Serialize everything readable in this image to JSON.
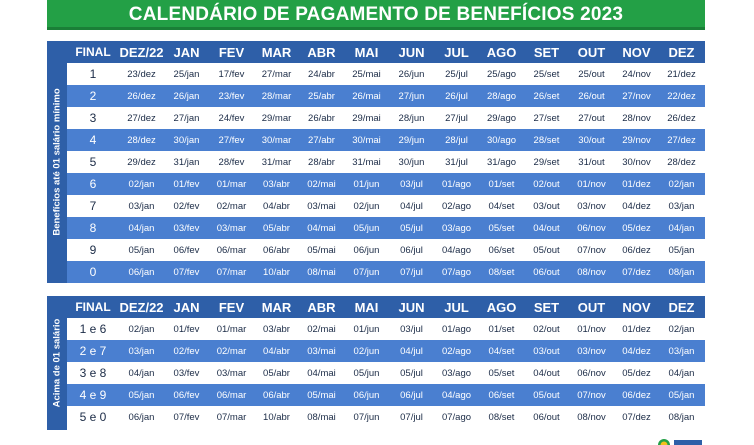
{
  "title": "CALENDÁRIO DE PAGAMENTO DE BENEFÍCIOS 2023",
  "header": [
    "FINAL",
    "DEZ/22",
    "JAN",
    "FEV",
    "MAR",
    "ABR",
    "MAI",
    "JUN",
    "JUL",
    "AGO",
    "SET",
    "OUT",
    "NOV",
    "DEZ"
  ],
  "section1": {
    "side_label": "Benefícios até 01 salário mínimo",
    "rows": [
      [
        "1",
        "23/dez",
        "25/jan",
        "17/fev",
        "27/mar",
        "24/abr",
        "25/mai",
        "26/jun",
        "25/jul",
        "25/ago",
        "25/set",
        "25/out",
        "24/nov",
        "21/dez"
      ],
      [
        "2",
        "26/dez",
        "26/jan",
        "23/fev",
        "28/mar",
        "25/abr",
        "26/mai",
        "27/jun",
        "26/jul",
        "28/ago",
        "26/set",
        "26/out",
        "27/nov",
        "22/dez"
      ],
      [
        "3",
        "27/dez",
        "27/jan",
        "24/fev",
        "29/mar",
        "26/abr",
        "29/mai",
        "28/jun",
        "27/jul",
        "29/ago",
        "27/set",
        "27/out",
        "28/nov",
        "26/dez"
      ],
      [
        "4",
        "28/dez",
        "30/jan",
        "27/fev",
        "30/mar",
        "27/abr",
        "30/mai",
        "29/jun",
        "28/jul",
        "30/ago",
        "28/set",
        "30/out",
        "29/nov",
        "27/dez"
      ],
      [
        "5",
        "29/dez",
        "31/jan",
        "28/fev",
        "31/mar",
        "28/abr",
        "31/mai",
        "30/jun",
        "31/jul",
        "31/ago",
        "29/set",
        "31/out",
        "30/nov",
        "28/dez"
      ],
      [
        "6",
        "02/jan",
        "01/fev",
        "01/mar",
        "03/abr",
        "02/mai",
        "01/jun",
        "03/jul",
        "01/ago",
        "01/set",
        "02/out",
        "01/nov",
        "01/dez",
        "02/jan"
      ],
      [
        "7",
        "03/jan",
        "02/fev",
        "02/mar",
        "04/abr",
        "03/mai",
        "02/jun",
        "04/jul",
        "02/ago",
        "04/set",
        "03/out",
        "03/nov",
        "04/dez",
        "03/jan"
      ],
      [
        "8",
        "04/jan",
        "03/fev",
        "03/mar",
        "05/abr",
        "04/mai",
        "05/jun",
        "05/jul",
        "03/ago",
        "05/set",
        "04/out",
        "06/nov",
        "05/dez",
        "04/jan"
      ],
      [
        "9",
        "05/jan",
        "06/fev",
        "06/mar",
        "06/abr",
        "05/mai",
        "06/jun",
        "06/jul",
        "04/ago",
        "06/set",
        "05/out",
        "07/nov",
        "06/dez",
        "05/jan"
      ],
      [
        "0",
        "06/jan",
        "07/fev",
        "07/mar",
        "10/abr",
        "08/mai",
        "07/jun",
        "07/jul",
        "07/ago",
        "08/set",
        "06/out",
        "08/nov",
        "07/dez",
        "08/jan"
      ]
    ]
  },
  "section2": {
    "side_label": "Acima de 01 salário",
    "rows": [
      [
        "1 e 6",
        "02/jan",
        "01/fev",
        "01/mar",
        "03/abr",
        "02/mai",
        "01/jun",
        "03/jul",
        "01/ago",
        "01/set",
        "02/out",
        "01/nov",
        "01/dez",
        "02/jan"
      ],
      [
        "2 e 7",
        "03/jan",
        "02/fev",
        "02/mar",
        "04/abr",
        "03/mai",
        "02/jun",
        "04/jul",
        "02/ago",
        "04/set",
        "03/out",
        "03/nov",
        "04/dez",
        "03/jan"
      ],
      [
        "3 e 8",
        "04/jan",
        "03/fev",
        "03/mar",
        "05/abr",
        "04/mai",
        "05/jun",
        "05/jul",
        "03/ago",
        "05/set",
        "04/out",
        "06/nov",
        "05/dez",
        "04/jan"
      ],
      [
        "4 e 9",
        "05/jan",
        "06/fev",
        "06/mar",
        "06/abr",
        "05/mai",
        "06/jun",
        "06/jul",
        "04/ago",
        "06/set",
        "05/out",
        "07/nov",
        "06/dez",
        "05/jan"
      ],
      [
        "5 e 0",
        "06/jan",
        "07/fev",
        "07/mar",
        "10/abr",
        "08/mai",
        "07/jun",
        "07/jul",
        "07/ago",
        "08/set",
        "06/out",
        "08/nov",
        "07/dez",
        "08/jan"
      ]
    ]
  },
  "colors": {
    "green": "#23a046",
    "navy": "#2e5fa8",
    "row_blue": "#4a7fd0",
    "row_white": "#ffffff"
  }
}
